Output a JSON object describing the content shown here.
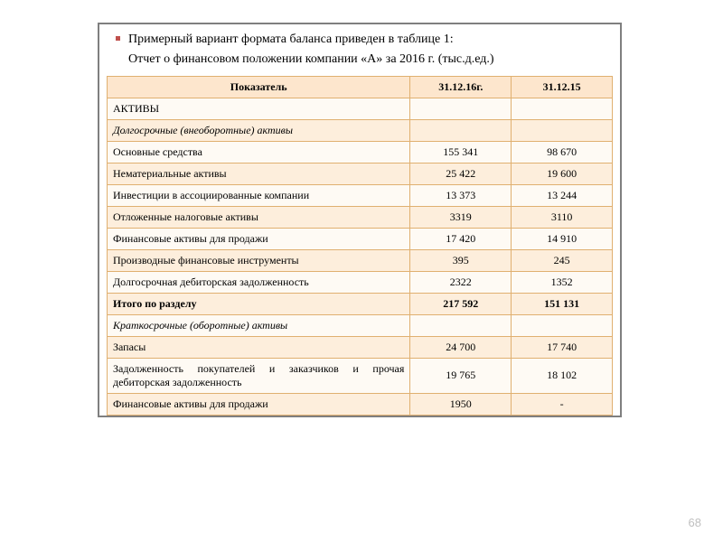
{
  "intro": {
    "bullet_text": "Примерный вариант формата баланса приведен в таблице 1:",
    "subtitle": "Отчет о финансовом положении компании «А» за 2016 г. (тыс.д.ед.)"
  },
  "table": {
    "headers": {
      "col1": "Показатель",
      "col2": "31.12.16г.",
      "col3": "31.12.15"
    },
    "rows": [
      {
        "label": "АКТИВЫ",
        "v1": "",
        "v2": "",
        "italic": false,
        "bold": false,
        "justify": false
      },
      {
        "label": "Долгосрочные (внеоборотные) активы",
        "v1": "",
        "v2": "",
        "italic": true,
        "bold": false,
        "justify": false
      },
      {
        "label": "Основные средства",
        "v1": "155 341",
        "v2": "98 670",
        "italic": false,
        "bold": false,
        "justify": false
      },
      {
        "label": "Нематериальные активы",
        "v1": "25 422",
        "v2": "19 600",
        "italic": false,
        "bold": false,
        "justify": false
      },
      {
        "label": "Инвестиции в ассоциированные компании",
        "v1": "13 373",
        "v2": "13 244",
        "italic": false,
        "bold": false,
        "justify": false
      },
      {
        "label": "Отложенные налоговые активы",
        "v1": "3319",
        "v2": "3110",
        "italic": false,
        "bold": false,
        "justify": false
      },
      {
        "label": "Финансовые активы для продажи",
        "v1": "17 420",
        "v2": "14 910",
        "italic": false,
        "bold": false,
        "justify": false
      },
      {
        "label": "Производные финансовые инструменты",
        "v1": "395",
        "v2": "245",
        "italic": false,
        "bold": false,
        "justify": false
      },
      {
        "label": "Долгосрочная дебиторская задолженность",
        "v1": "2322",
        "v2": "1352",
        "italic": false,
        "bold": false,
        "justify": false
      },
      {
        "label": "Итого по разделу",
        "v1": "217 592",
        "v2": "151 131",
        "italic": false,
        "bold": true,
        "justify": false
      },
      {
        "label": "Краткосрочные (оборотные) активы",
        "v1": "",
        "v2": "",
        "italic": true,
        "bold": false,
        "justify": false
      },
      {
        "label": "Запасы",
        "v1": "24 700",
        "v2": "17 740",
        "italic": false,
        "bold": false,
        "justify": false
      },
      {
        "label": "Задолженность покупателей и заказчиков и прочая дебиторская задолженность",
        "v1": "19 765",
        "v2": "18 102",
        "italic": false,
        "bold": false,
        "justify": true
      },
      {
        "label": "Финансовые активы для продажи",
        "v1": "1950",
        "v2": "-",
        "italic": false,
        "bold": false,
        "justify": false
      }
    ]
  },
  "page_number": "68",
  "style": {
    "accent_color": "#c0504d",
    "header_bg": "#fde6cd",
    "row_even_bg": "#fdeedc",
    "row_odd_bg": "#fefaf4",
    "border_color": "#e0b070",
    "frame_border": "#7f7f7f",
    "page_num_color": "#bfbfbf",
    "body_fontsize": 14,
    "table_fontsize": 12
  }
}
